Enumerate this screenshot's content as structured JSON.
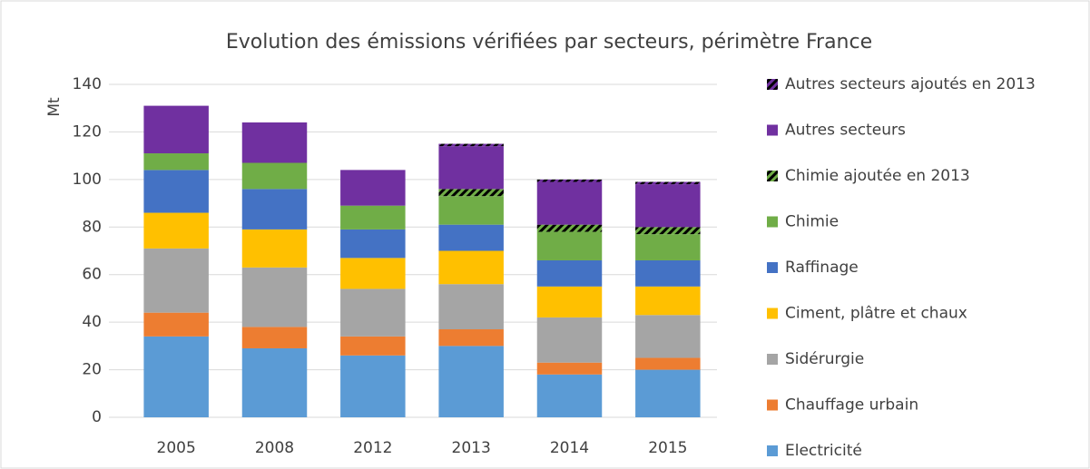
{
  "chart_data": {
    "type": "stacked_bar",
    "title": "Evolution des émissions vérifiées par secteurs, périmètre France",
    "y_label": "Mt",
    "categories": [
      "2005",
      "2008",
      "2012",
      "2013",
      "2014",
      "2015"
    ],
    "series": [
      {
        "name": "Electricité",
        "color": "#5b9bd5",
        "values": [
          34,
          29,
          26,
          30,
          18,
          20
        ]
      },
      {
        "name": "Chauffage urbain",
        "color": "#ed7d31",
        "values": [
          10,
          9,
          8,
          7,
          5,
          5
        ]
      },
      {
        "name": "Sidérurgie",
        "color": "#a5a5a5",
        "values": [
          27,
          25,
          20,
          19,
          19,
          18
        ]
      },
      {
        "name": "Ciment, plâtre et chaux",
        "color": "#ffc000",
        "values": [
          15,
          16,
          13,
          14,
          13,
          12
        ]
      },
      {
        "name": "Raffinage",
        "color": "#4472c4",
        "values": [
          18,
          17,
          12,
          11,
          11,
          11
        ]
      },
      {
        "name": "Chimie",
        "color": "#70ad47",
        "values": [
          7,
          11,
          10,
          12,
          12,
          11
        ]
      },
      {
        "name": "Chimie ajoutée en 2013",
        "color": "#70ad47",
        "hatch": true,
        "values": [
          0,
          0,
          0,
          3,
          3,
          3
        ]
      },
      {
        "name": "Autres secteurs",
        "color": "#7030a0",
        "values": [
          20,
          17,
          15,
          18,
          18,
          18
        ]
      },
      {
        "name": "Autres secteurs ajoutés en 2013",
        "color": "#7030a0",
        "hatch": true,
        "values": [
          0,
          0,
          0,
          1,
          1,
          1
        ]
      }
    ],
    "ylim": [
      0,
      140
    ],
    "yticks": [
      0,
      20,
      40,
      60,
      80,
      100,
      120,
      140
    ],
    "grid": true
  }
}
